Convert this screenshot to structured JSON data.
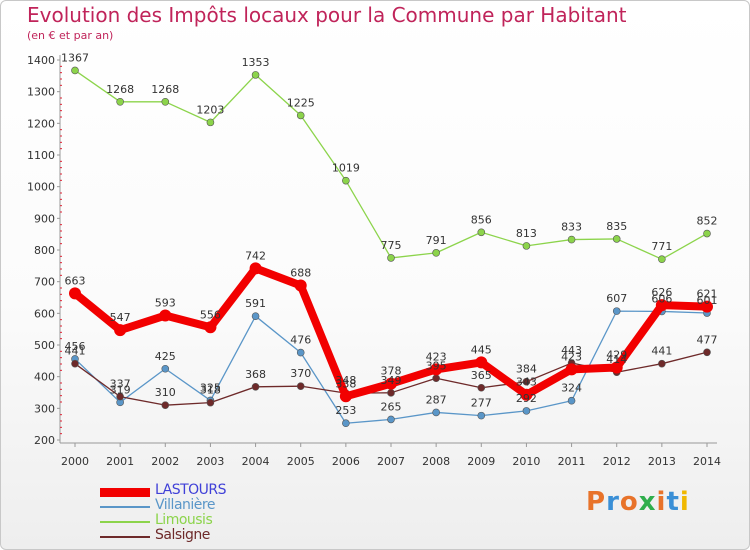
{
  "title": "Evolution des Impôts locaux pour la Commune par Habitant",
  "subtitle": "(en € et par an)",
  "logo_text": "Proxiti",
  "logo_colors": [
    "#e8732a",
    "#3a8fd6",
    "#e8732a",
    "#2fae4c",
    "#e8732a",
    "#3a8fd6",
    "#f0b800"
  ],
  "chart_data": {
    "type": "line",
    "x": [
      "2000",
      "2001",
      "2002",
      "2003",
      "2004",
      "2005",
      "2006",
      "2007",
      "2008",
      "2009",
      "2010",
      "2011",
      "2012",
      "2013",
      "2014"
    ],
    "ylim": [
      200,
      1400
    ],
    "yticks": [
      200,
      300,
      400,
      500,
      600,
      700,
      800,
      900,
      1000,
      1100,
      1200,
      1300,
      1400
    ],
    "grid": false,
    "legend_position": "bottom-left",
    "series": [
      {
        "name": "Limousis",
        "color": "#8cd44b",
        "width": 1.3,
        "marker": 3.5,
        "values": [
          1367,
          1268,
          1268,
          1203,
          1353,
          1225,
          1019,
          775,
          791,
          856,
          813,
          833,
          835,
          771,
          852
        ]
      },
      {
        "name": "Villanière",
        "color": "#5a96c8",
        "width": 1.3,
        "marker": 3.5,
        "values": [
          456,
          319,
          425,
          325,
          591,
          476,
          253,
          265,
          287,
          277,
          292,
          324,
          607,
          606,
          601
        ]
      },
      {
        "name": "Salsigne",
        "color": "#6e2a2a",
        "width": 1.3,
        "marker": 3.5,
        "values": [
          441,
          337,
          310,
          318,
          368,
          370,
          348,
          349,
          395,
          365,
          384,
          443,
          414,
          441,
          477
        ]
      },
      {
        "name": "LASTOURS",
        "color": "#f20000",
        "width": 8,
        "marker": 6,
        "values": [
          663,
          547,
          593,
          556,
          742,
          688,
          338,
          378,
          423,
          445,
          343,
          423,
          429,
          626,
          621
        ]
      }
    ],
    "legend_order": [
      "LASTOURS",
      "Villanière",
      "Limousis",
      "Salsigne"
    ]
  }
}
